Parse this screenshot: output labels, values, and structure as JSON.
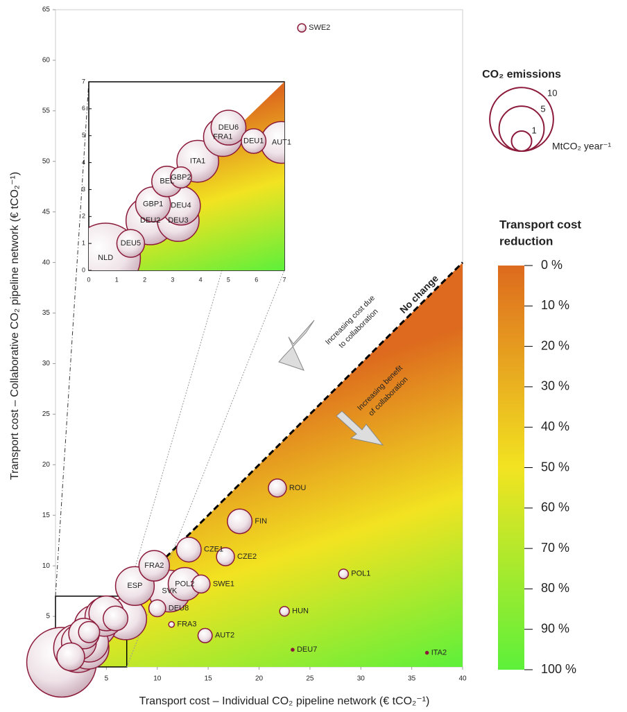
{
  "chart_data": {
    "type": "bubble",
    "x_label": "Transport cost – Individual CO₂ pipeline network (€ tCO₂⁻¹)",
    "y_label": "Transport cost – Collaborative CO₂ pipeline network (€ tCO₂⁻¹)",
    "xlim": [
      0,
      40
    ],
    "ylim": [
      0,
      65
    ],
    "xticks": [
      0,
      5,
      10,
      15,
      20,
      25,
      30,
      35,
      40
    ],
    "yticks": [
      0,
      5,
      10,
      15,
      20,
      25,
      30,
      35,
      40,
      45,
      50,
      55,
      60,
      65
    ],
    "color": "#8b1a3a",
    "diagonal_label": "No change",
    "annotations": [
      {
        "lines": [
          "Increasing cost due",
          "to collaboration"
        ]
      },
      {
        "lines": [
          "Increasing benefit",
          "of collaboration"
        ]
      }
    ],
    "points": [
      {
        "name": "NLD",
        "x": 0.6,
        "y": 0.46,
        "size": 12
      },
      {
        "name": "DEU2",
        "x": 2.2,
        "y": 1.85,
        "size": 5.8
      },
      {
        "name": "SVK",
        "x": 11.2,
        "y": 7.5,
        "size": 4.3
      },
      {
        "name": "AUT1",
        "x": 6.9,
        "y": 4.75,
        "size": 4.3
      },
      {
        "name": "DEU3",
        "x": 3.2,
        "y": 1.85,
        "size": 4.3
      },
      {
        "name": "ITA1",
        "x": 3.9,
        "y": 4.05,
        "size": 4.3
      },
      {
        "name": "ESP",
        "x": 7.8,
        "y": 8.0,
        "size": 3.7
      },
      {
        "name": "DEU4",
        "x": 3.3,
        "y": 2.4,
        "size": 3.7
      },
      {
        "name": "FRA1",
        "x": 4.8,
        "y": 4.95,
        "size": 3.7
      },
      {
        "name": "GBP1",
        "x": 2.3,
        "y": 2.45,
        "size": 3
      },
      {
        "name": "DEU6",
        "x": 5.0,
        "y": 5.3,
        "size": 3
      },
      {
        "name": "POL2",
        "x": 12.7,
        "y": 8.2,
        "size": 2.7
      },
      {
        "name": "FRA2",
        "x": 9.7,
        "y": 10.0,
        "size": 2.3
      },
      {
        "name": "BEL",
        "x": 2.8,
        "y": 3.3,
        "size": 2.3
      },
      {
        "name": "DEU5",
        "x": 1.5,
        "y": 1.0,
        "size": 1.9
      },
      {
        "name": "FIN",
        "x": 18.1,
        "y": 14.4,
        "size": 1.5
      },
      {
        "name": "CZE1",
        "x": 13.1,
        "y": 11.6,
        "size": 1.5
      },
      {
        "name": "DEU1",
        "x": 5.9,
        "y": 4.8,
        "size": 1.5
      },
      {
        "name": "GBP2",
        "x": 3.3,
        "y": 3.45,
        "size": 1.1
      },
      {
        "name": "ROU",
        "x": 21.8,
        "y": 17.7,
        "size": 0.8
      },
      {
        "name": "CZE2",
        "x": 16.7,
        "y": 10.9,
        "size": 0.8
      },
      {
        "name": "SWE1",
        "x": 14.3,
        "y": 8.2,
        "size": 0.8
      },
      {
        "name": "DEU8",
        "x": 10.0,
        "y": 5.8,
        "size": 0.7
      },
      {
        "name": "AUT2",
        "x": 14.7,
        "y": 3.1,
        "size": 0.5
      },
      {
        "name": "POL1",
        "x": 28.3,
        "y": 9.2,
        "size": 0.23
      },
      {
        "name": "HUN",
        "x": 22.5,
        "y": 5.5,
        "size": 0.23
      },
      {
        "name": "SWE2",
        "x": 24.2,
        "y": 63.2,
        "size": 0.17
      },
      {
        "name": "FRA3",
        "x": 11.4,
        "y": 4.2,
        "size": 0.08
      },
      {
        "name": "DEU7",
        "x": 23.3,
        "y": 1.7,
        "size": 0.02
      },
      {
        "name": "ITA2",
        "x": 36.5,
        "y": 1.4,
        "size": 0.02
      }
    ],
    "inset": {
      "xlim": [
        0,
        7
      ],
      "ylim": [
        0,
        7
      ],
      "xticks": [
        0,
        1,
        2,
        3,
        4,
        5,
        6,
        7
      ],
      "yticks": [
        0,
        1,
        2,
        3,
        4,
        5,
        6,
        7
      ]
    },
    "size_legend": {
      "title": "CO₂ emissions",
      "values": [
        10,
        5,
        1
      ],
      "unit": "MtCO₂ year⁻¹"
    },
    "colorbar": {
      "title_lines": [
        "Transport cost",
        "reduction"
      ],
      "ticks": [
        {
          "value": 0,
          "label": "0 %"
        },
        {
          "value": 10,
          "label": "10 %"
        },
        {
          "value": 20,
          "label": "20 %"
        },
        {
          "value": 30,
          "label": "30 %"
        },
        {
          "value": 40,
          "label": "40 %"
        },
        {
          "value": 50,
          "label": "50 %"
        },
        {
          "value": 60,
          "label": "60 %"
        },
        {
          "value": 70,
          "label": "70 %"
        },
        {
          "value": 80,
          "label": "80 %"
        },
        {
          "value": 90,
          "label": "90 %"
        },
        {
          "value": 100,
          "label": "100 %"
        }
      ],
      "lim": [
        0,
        100
      ]
    }
  }
}
